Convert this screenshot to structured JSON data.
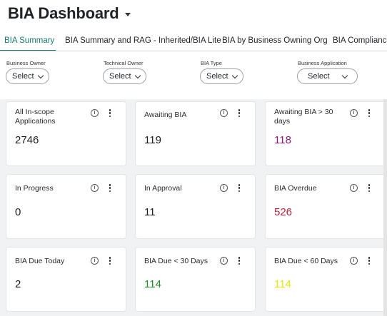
{
  "header": {
    "title": "BIA Dashboard"
  },
  "tabs": [
    {
      "label": "BIA Summary",
      "active": true
    },
    {
      "label": "BIA Summary and RAG - Inherited/BIA Lite",
      "active": false
    },
    {
      "label": "BIA by Business Owning Org",
      "active": false
    },
    {
      "label": "BIA Compliance",
      "active": false
    }
  ],
  "filters": [
    {
      "label": "Business Owner",
      "value": "Select"
    },
    {
      "label": "Technical Owner",
      "value": "Select"
    },
    {
      "label": "BIA Type",
      "value": "Select"
    },
    {
      "label": "Business Application",
      "value": "Select"
    }
  ],
  "cards": [
    {
      "label": "All In-scope Applications",
      "value": "2746",
      "color": "#1d1d1d"
    },
    {
      "label": "Awaiting BIA",
      "value": "119",
      "color": "#1d1d1d"
    },
    {
      "label": "Awaiting BIA > 30 days",
      "value": "118",
      "color": "#8b1c7a"
    },
    {
      "label": "In Progress",
      "value": "0",
      "color": "#1d1d1d"
    },
    {
      "label": "In Approval",
      "value": "11",
      "color": "#1d1d1d"
    },
    {
      "label": "BIA Overdue",
      "value": "526",
      "color": "#b51f3d"
    },
    {
      "label": "BIA Due Today",
      "value": "2",
      "color": "#1d1d1d"
    },
    {
      "label": "BIA Due < 30 Days",
      "value": "114",
      "color": "#1f8a2a"
    },
    {
      "label": "BIA Due < 60 Days",
      "value": "114",
      "color": "#e6e600"
    }
  ],
  "icons": {
    "info": "i"
  }
}
